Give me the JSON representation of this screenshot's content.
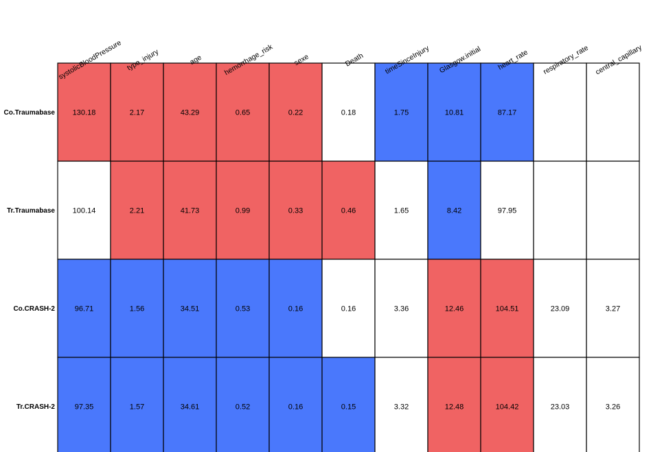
{
  "colors": {
    "high": "#f06363",
    "low": "#4a78fc",
    "neutral": "#ffffff",
    "grid": "#000000"
  },
  "chart_data": {
    "type": "heatmap",
    "title": "",
    "xlabel": "",
    "ylabel": "",
    "columns": [
      "systolicBloodPressure",
      "type_injury",
      "age",
      "hemorrhage_risk",
      "sexe",
      "Death",
      "timeSinceInjury",
      "Glasgow.initial",
      "heart_rate",
      "respiratory_rate",
      "central_capillary"
    ],
    "rows": [
      {
        "name": "Co.Traumabase",
        "values": [
          "130.18",
          "2.17",
          "43.29",
          "0.65",
          "0.22",
          "0.18",
          "1.75",
          "10.81",
          "87.17",
          "",
          ""
        ],
        "colors": [
          "high",
          "high",
          "high",
          "high",
          "high",
          "neutral",
          "low",
          "low",
          "low",
          "neutral",
          "neutral"
        ]
      },
      {
        "name": "Tr.Traumabase",
        "values": [
          "100.14",
          "2.21",
          "41.73",
          "0.99",
          "0.33",
          "0.46",
          "1.65",
          "8.42",
          "97.95",
          "",
          ""
        ],
        "colors": [
          "neutral",
          "high",
          "high",
          "high",
          "high",
          "high",
          "neutral",
          "low",
          "neutral",
          "neutral",
          "neutral"
        ]
      },
      {
        "name": "Co.CRASH-2",
        "values": [
          "96.71",
          "1.56",
          "34.51",
          "0.53",
          "0.16",
          "0.16",
          "3.36",
          "12.46",
          "104.51",
          "23.09",
          "3.27"
        ],
        "colors": [
          "low",
          "low",
          "low",
          "low",
          "low",
          "neutral",
          "neutral",
          "high",
          "high",
          "neutral",
          "neutral"
        ]
      },
      {
        "name": "Tr.CRASH-2",
        "values": [
          "97.35",
          "1.57",
          "34.61",
          "0.52",
          "0.16",
          "0.15",
          "3.32",
          "12.48",
          "104.42",
          "23.03",
          "3.26"
        ],
        "colors": [
          "low",
          "low",
          "low",
          "low",
          "low",
          "low",
          "neutral",
          "high",
          "high",
          "neutral",
          "neutral"
        ]
      }
    ]
  }
}
